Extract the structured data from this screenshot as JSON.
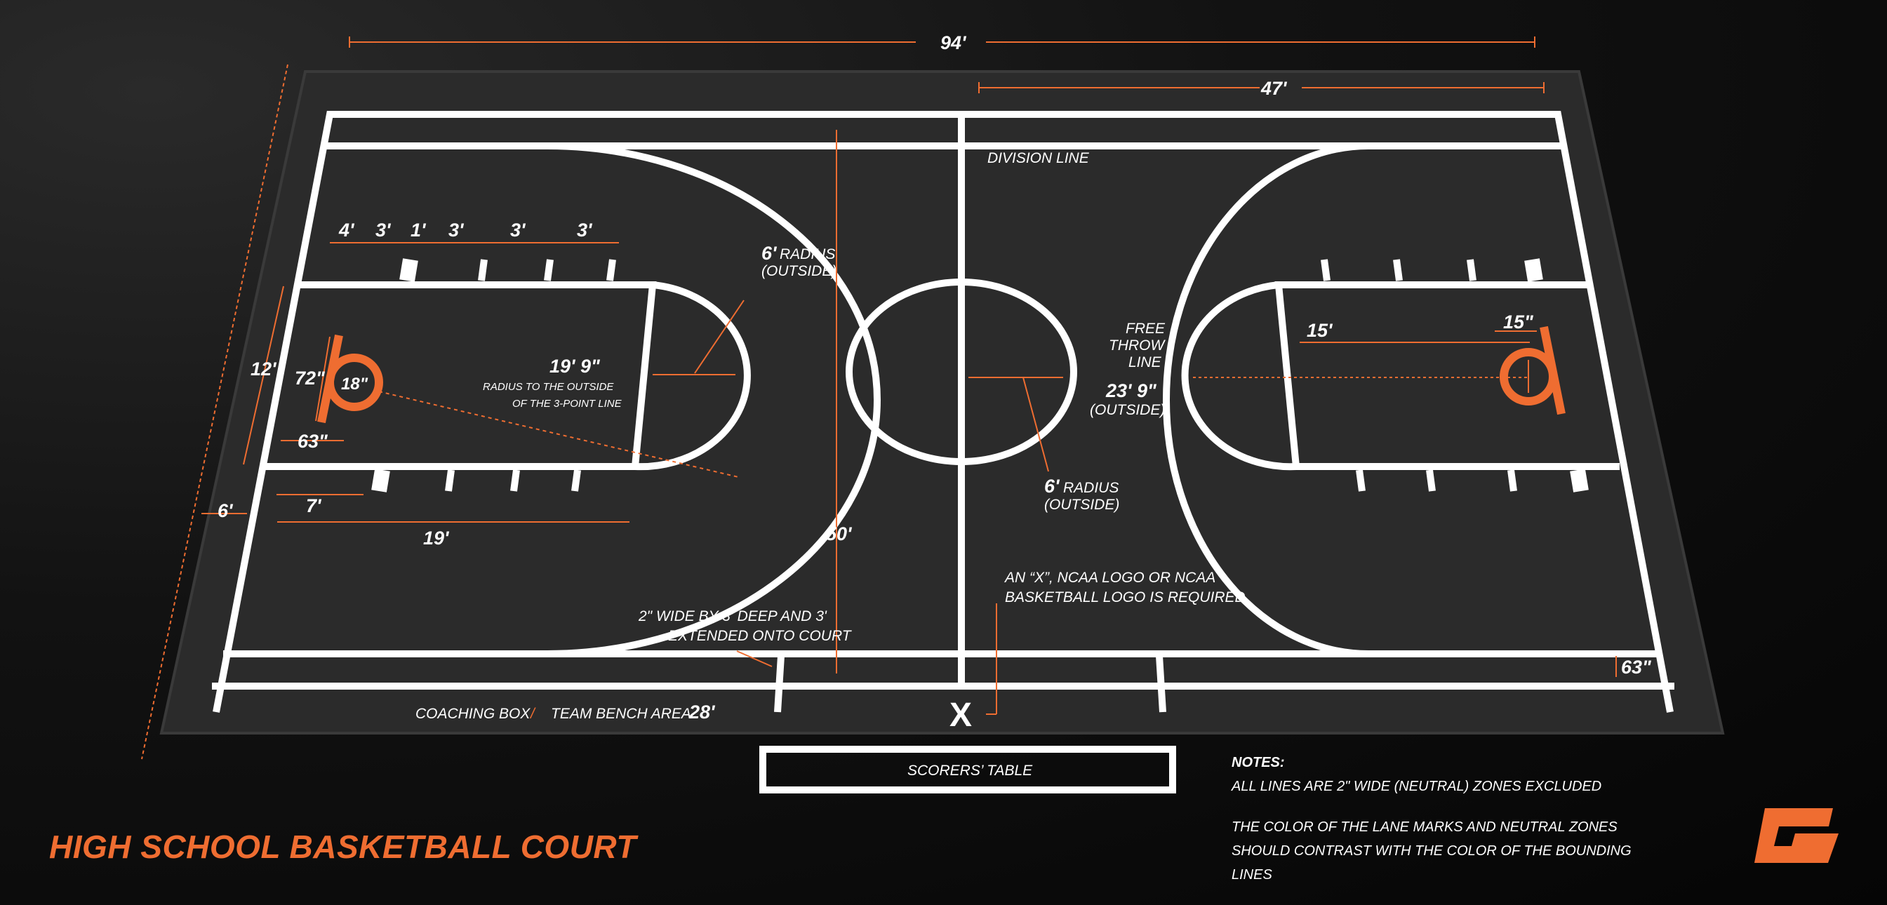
{
  "title": "HIGH SCHOOL BASKETBALL COURT",
  "colors": {
    "accent": "#ef6d31",
    "line": "#ffffff",
    "floor": "#2b2b2b",
    "background": "#0d0d0d"
  },
  "dimensions": {
    "length": "94'",
    "half_length": "47'",
    "width": "50'",
    "lane_width": "12'",
    "hash_spacing": [
      "4'",
      "3'",
      "1'",
      "3'",
      "3'",
      "3'"
    ],
    "backboard_to_rim": "15\"",
    "rim_offset": "72\"",
    "rim_diameter": "18\"",
    "rim_setback": "63\"",
    "bench_depth": "6'",
    "corner_marker": "7'",
    "free_throw_distance": "19'",
    "free_throw_to_backboard": "15'",
    "corner_three": "63\"",
    "three_point_radius": "19' 9\"",
    "coaching_box": "28'",
    "three_point_outside_radius": "23' 9\""
  },
  "annotations": {
    "division_line": "DIVISION LINE",
    "three_point_radius_note_1": "RADIUS TO THE OUTSIDE",
    "three_point_radius_note_2": "OF THE 3-POINT LINE",
    "ft_radius_value": "6'",
    "ft_radius_word": "RADIUS",
    "ft_radius_outside": "(OUTSIDE)",
    "center_radius_value": "6'",
    "center_radius_word": "RADIUS",
    "center_radius_outside": "(OUTSIDE)",
    "free_throw_1": "FREE",
    "free_throw_2": "THROW",
    "free_throw_3": "LINE",
    "outside_paren": "(OUTSIDE)",
    "logo_note_1": "AN “X”, NCAA LOGO OR NCAA",
    "logo_note_2": "BASKETBALL LOGO IS REQUIRED.",
    "hash_note_1": "2\" WIDE BY 3' DEEP AND 3'",
    "hash_note_2": "EXTENDED ONTO COURT",
    "coaching_box": "COACHING BOX",
    "separator": "/",
    "team_bench": "TEAM BENCH AREA",
    "x_mark": "X",
    "scorers_table": "SCORERS’ TABLE"
  },
  "notes": {
    "heading": "NOTES:",
    "line1": "ALL LINES ARE 2\" WIDE (NEUTRAL) ZONES EXCLUDED",
    "line2": "THE COLOR OF THE LANE MARKS AND NEUTRAL ZONES",
    "line3": "SHOULD CONTRAST WITH THE COLOR OF THE BOUNDING",
    "line4": "LINES"
  },
  "logo_icon": "g-brand-logo-icon"
}
